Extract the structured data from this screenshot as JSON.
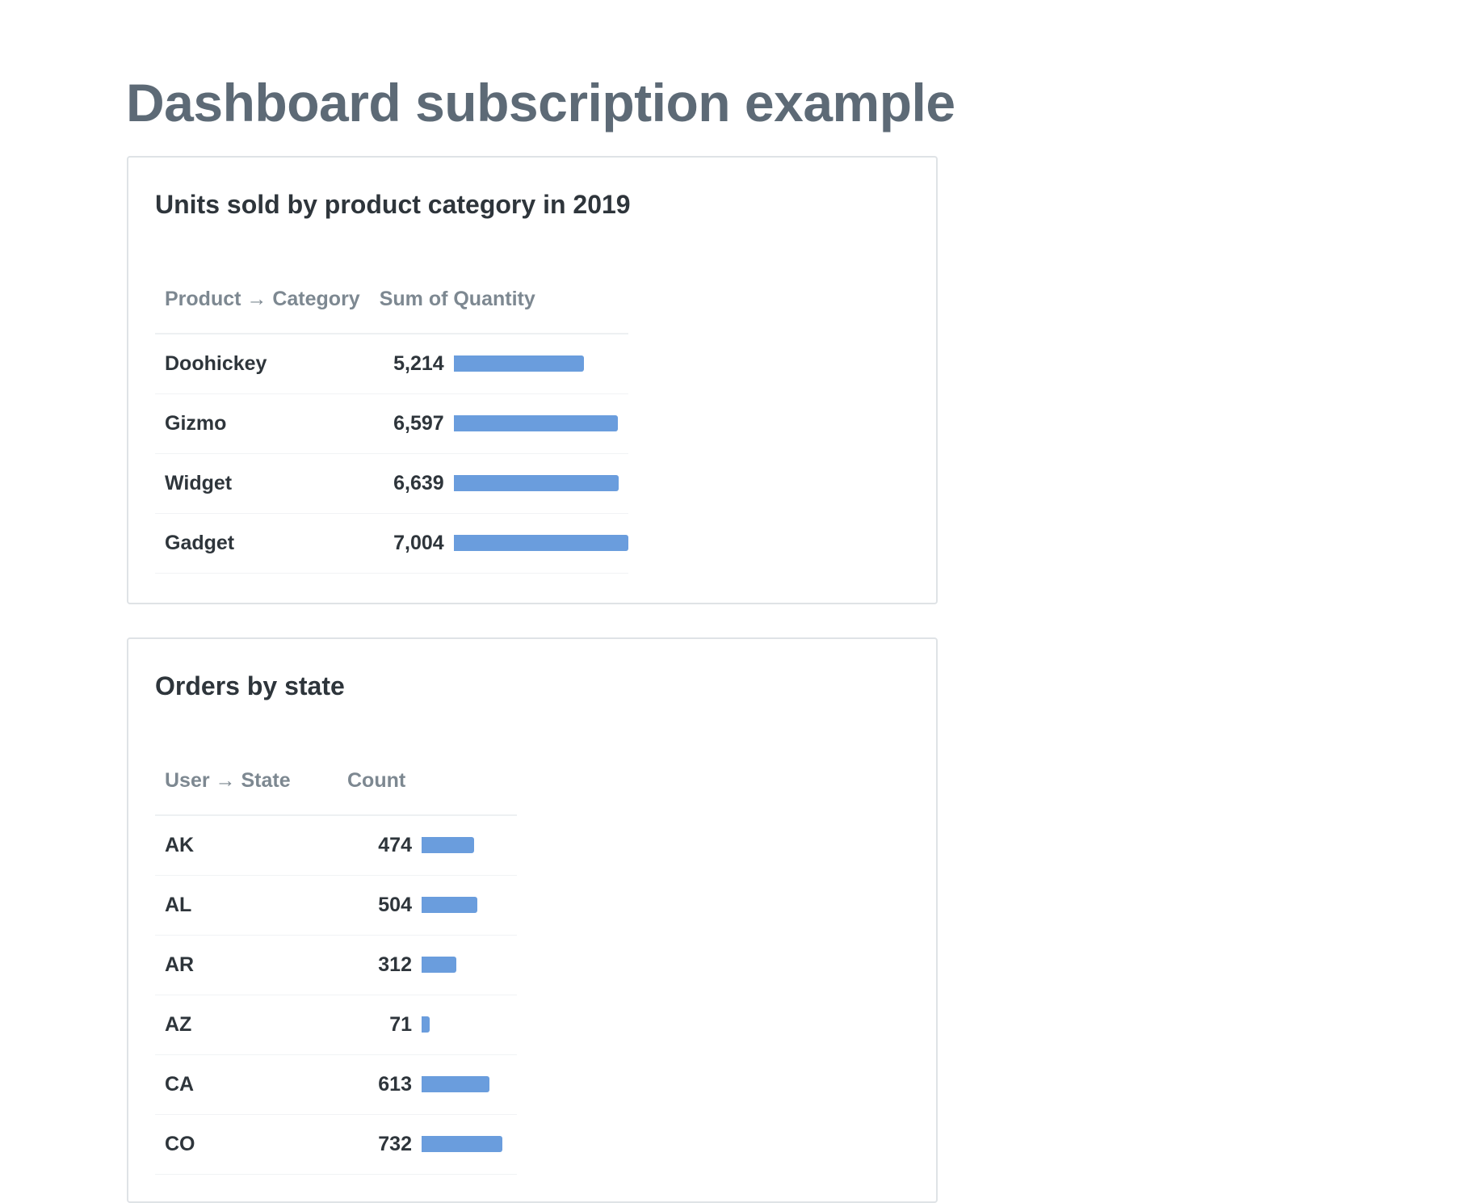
{
  "page": {
    "title": "Dashboard subscription example"
  },
  "colors": {
    "bar": "#6a9ddd",
    "title": "#5d6a76",
    "header_text": "#7d8891",
    "body_text": "#2e353b",
    "card_border": "#dfe3e6"
  },
  "cards": [
    {
      "title": "Units sold by product category in 2019",
      "columns": [
        "Product → Category",
        "Sum of Quantity"
      ],
      "rows": [
        {
          "label": "Doohickey",
          "value": "5,214"
        },
        {
          "label": "Gizmo",
          "value": "6,597"
        },
        {
          "label": "Widget",
          "value": "6,639"
        },
        {
          "label": "Gadget",
          "value": "7,004"
        }
      ]
    },
    {
      "title": "Orders by state",
      "columns": [
        "User → State",
        "Count"
      ],
      "rows": [
        {
          "label": "AK",
          "value": "474"
        },
        {
          "label": "AL",
          "value": "504"
        },
        {
          "label": "AR",
          "value": "312"
        },
        {
          "label": "AZ",
          "value": "71"
        },
        {
          "label": "CA",
          "value": "613"
        },
        {
          "label": "CO",
          "value": "732"
        }
      ]
    }
  ],
  "chart_data": [
    {
      "type": "bar",
      "title": "Units sold by product category in 2019",
      "xlabel": "Product → Category",
      "ylabel": "Sum of Quantity",
      "categories": [
        "Doohickey",
        "Gizmo",
        "Widget",
        "Gadget"
      ],
      "values": [
        5214,
        6597,
        6639,
        7004
      ],
      "ylim": [
        0,
        7004
      ]
    },
    {
      "type": "bar",
      "title": "Orders by state",
      "xlabel": "User → State",
      "ylabel": "Count",
      "categories": [
        "AK",
        "AL",
        "AR",
        "AZ",
        "CA",
        "CO"
      ],
      "values": [
        474,
        504,
        312,
        71,
        613,
        732
      ],
      "ylim": [
        0,
        864
      ]
    }
  ]
}
